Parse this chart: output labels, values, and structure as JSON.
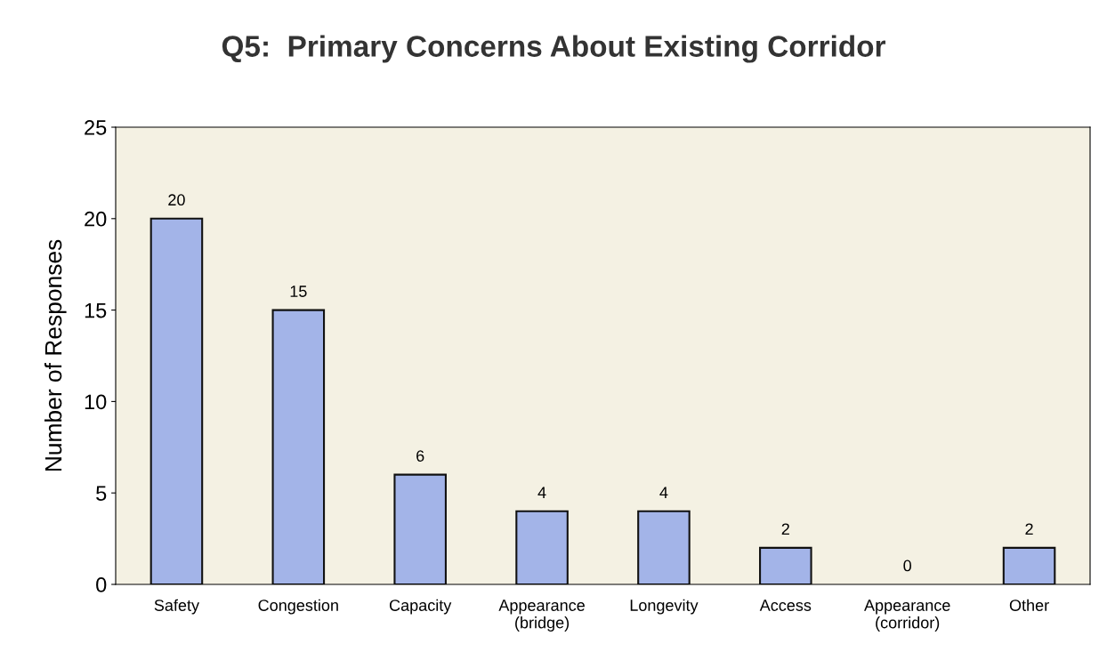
{
  "chart_data": {
    "type": "bar",
    "title": "Q5:  Primary Concerns About Existing Corridor",
    "ylabel": "Number of Responses",
    "categories": [
      "Safety",
      "Congestion",
      "Capacity",
      "Appearance\n(bridge)",
      "Longevity",
      "Access",
      "Appearance\n(corridor)",
      "Other"
    ],
    "values": [
      20,
      15,
      6,
      4,
      4,
      2,
      0,
      2
    ],
    "color": "#a3b4e8",
    "ylim": [
      0,
      25
    ],
    "yticks": [
      0,
      5,
      10,
      15,
      20,
      25
    ],
    "data_labels": true,
    "grid": false,
    "legend": false
  }
}
